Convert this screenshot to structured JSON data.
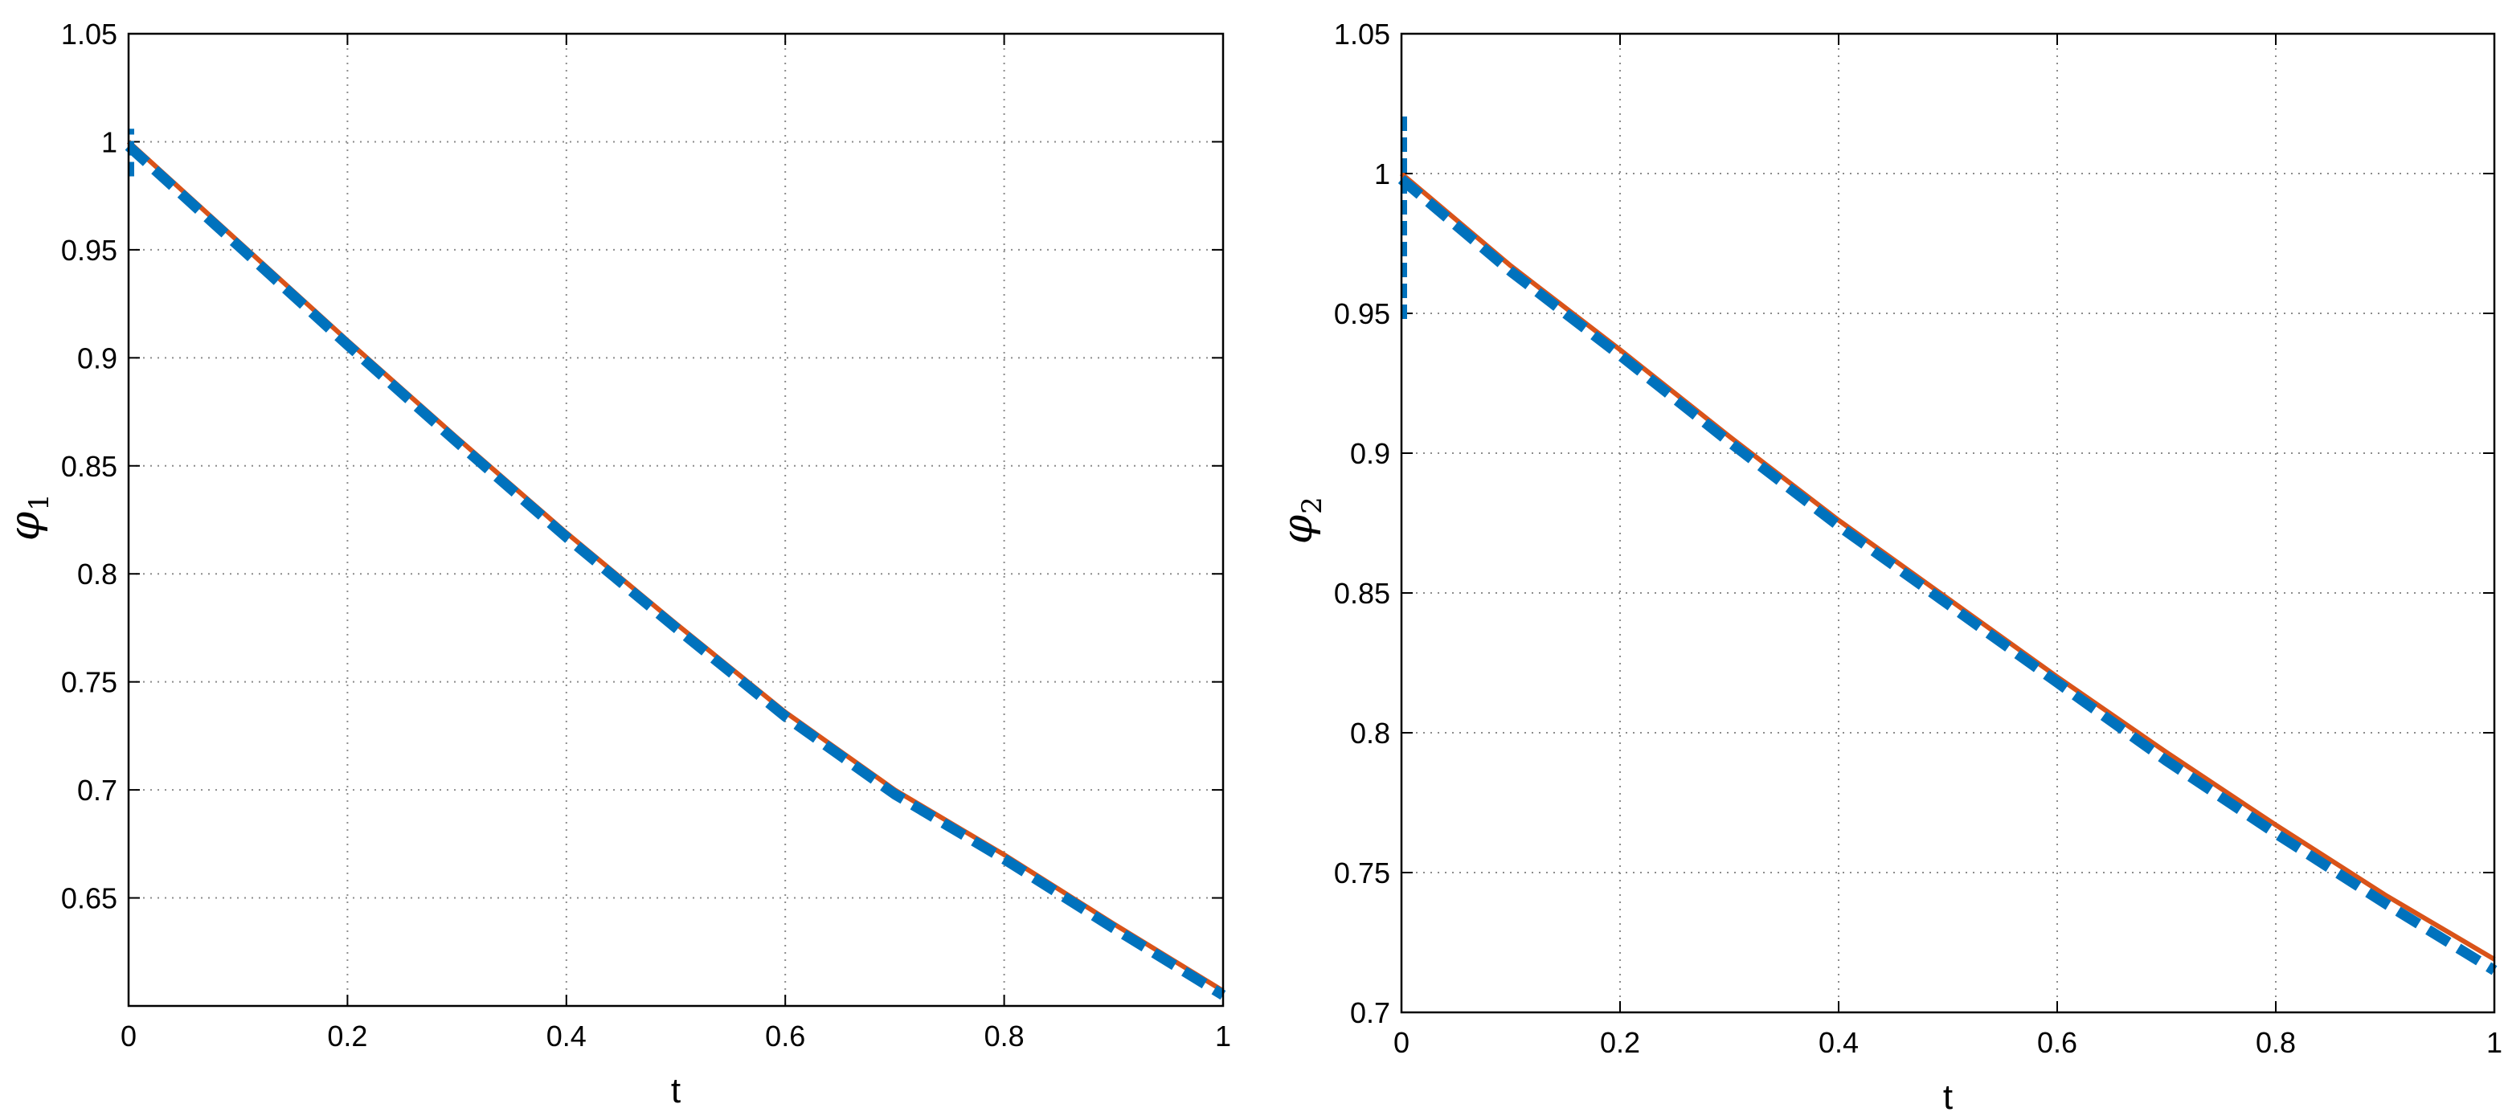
{
  "chart_data": [
    {
      "type": "line",
      "title": "",
      "xlabel": "t",
      "ylabel": {
        "symbol": "φ",
        "subscript": "1"
      },
      "xlim": [
        0,
        1
      ],
      "ylim": [
        0.6,
        1.05
      ],
      "xticks": [
        "0",
        "0.2",
        "0.4",
        "0.6",
        "0.8",
        "1"
      ],
      "yticks": [
        "0.65",
        "0.7",
        "0.75",
        "0.8",
        "0.85",
        "0.9",
        "0.95",
        "1",
        "1.05"
      ],
      "grid": true,
      "legend": "none",
      "series": [
        {
          "style": "solid",
          "color": "#D95319",
          "x": [
            0,
            0.1,
            0.2,
            0.3,
            0.4,
            0.5,
            0.6,
            0.7,
            0.8,
            0.9,
            1
          ],
          "y": [
            1.0,
            0.954,
            0.908,
            0.863,
            0.819,
            0.777,
            0.736,
            0.7,
            0.67,
            0.638,
            0.607
          ]
        },
        {
          "style": "dashed",
          "color": "#0072BD",
          "x": [
            0,
            0.1,
            0.2,
            0.3,
            0.4,
            0.5,
            0.6,
            0.7,
            0.8,
            0.9,
            1
          ],
          "y": [
            0.998,
            0.952,
            0.906,
            0.861,
            0.817,
            0.775,
            0.734,
            0.698,
            0.668,
            0.636,
            0.605
          ],
          "initial_spike": [
            0.984,
            1.006
          ]
        }
      ]
    },
    {
      "type": "line",
      "title": "",
      "xlabel": "t",
      "ylabel": {
        "symbol": "φ",
        "subscript": "2"
      },
      "xlim": [
        0,
        1
      ],
      "ylim": [
        0.7,
        1.05
      ],
      "xticks": [
        "0",
        "0.2",
        "0.4",
        "0.6",
        "0.8",
        "1"
      ],
      "yticks": [
        "0.7",
        "0.75",
        "0.8",
        "0.85",
        "0.9",
        "0.95",
        "1",
        "1.05"
      ],
      "grid": true,
      "legend": "none",
      "series": [
        {
          "style": "solid",
          "color": "#D95319",
          "x": [
            0,
            0.1,
            0.2,
            0.3,
            0.4,
            0.5,
            0.6,
            0.7,
            0.8,
            0.9,
            1
          ],
          "y": [
            1.0,
            0.967,
            0.937,
            0.906,
            0.876,
            0.848,
            0.82,
            0.793,
            0.767,
            0.742,
            0.719
          ]
        },
        {
          "style": "dashed",
          "color": "#0072BD",
          "x": [
            0,
            0.1,
            0.2,
            0.3,
            0.4,
            0.5,
            0.6,
            0.7,
            0.8,
            0.9,
            1
          ],
          "y": [
            0.998,
            0.965,
            0.935,
            0.904,
            0.874,
            0.846,
            0.818,
            0.79,
            0.764,
            0.739,
            0.715
          ],
          "initial_spike": [
            0.948,
            1.022
          ]
        }
      ]
    }
  ]
}
